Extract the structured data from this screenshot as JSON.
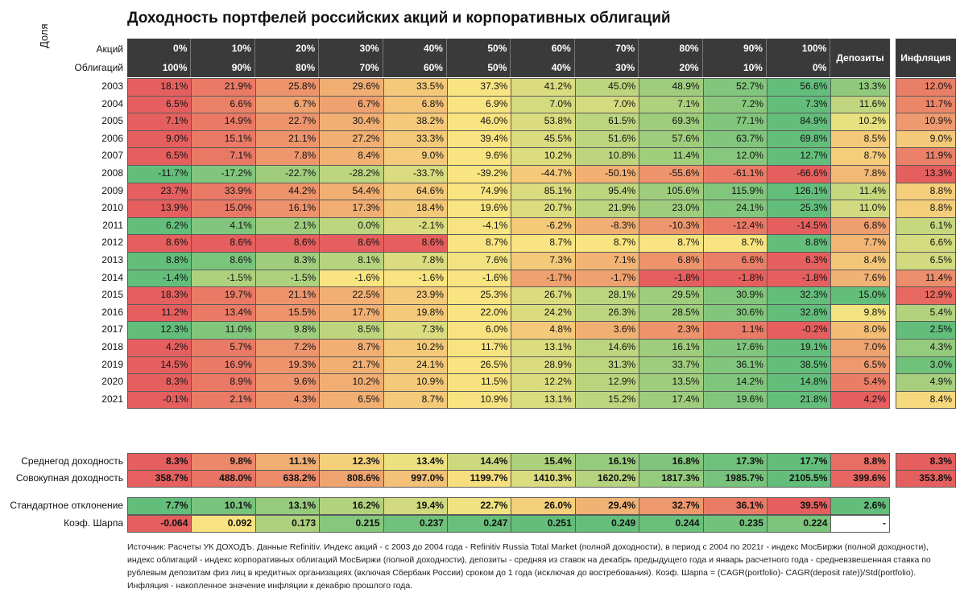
{
  "title": "Доходность портфелей российских акций и корпоративных облигаций",
  "header": {
    "share_label": "Доля",
    "stocks_label": "Акций",
    "bonds_label": "Облигаций",
    "stocks": [
      "0%",
      "10%",
      "20%",
      "30%",
      "40%",
      "50%",
      "60%",
      "70%",
      "80%",
      "90%",
      "100%"
    ],
    "bonds": [
      "100%",
      "90%",
      "80%",
      "70%",
      "60%",
      "50%",
      "40%",
      "30%",
      "20%",
      "10%",
      "0%"
    ],
    "deposits_label": "Депозиты",
    "inflation_label": "Инфляция"
  },
  "chart_data": {
    "type": "table",
    "title": "Доходность портфелей российских акций и корпоративных облигаций",
    "years": [
      "2003",
      "2004",
      "2005",
      "2006",
      "2007",
      "2008",
      "2009",
      "2010",
      "2011",
      "2012",
      "2013",
      "2014",
      "2015",
      "2016",
      "2017",
      "2018",
      "2019",
      "2020",
      "2021"
    ],
    "rows": [
      {
        "portfolio": [
          "18.1%",
          "21.9%",
          "25.8%",
          "29.6%",
          "33.5%",
          "37.3%",
          "41.2%",
          "45.0%",
          "48.9%",
          "52.7%",
          "56.6%"
        ],
        "deposits": "13.3%",
        "inflation": "12.0%"
      },
      {
        "portfolio": [
          "6.5%",
          "6.6%",
          "6.7%",
          "6.7%",
          "6.8%",
          "6.9%",
          "7.0%",
          "7.0%",
          "7.1%",
          "7.2%",
          "7.3%"
        ],
        "deposits": "11.6%",
        "inflation": "11.7%"
      },
      {
        "portfolio": [
          "7.1%",
          "14.9%",
          "22.7%",
          "30.4%",
          "38.2%",
          "46.0%",
          "53.8%",
          "61.5%",
          "69.3%",
          "77.1%",
          "84.9%"
        ],
        "deposits": "10.2%",
        "inflation": "10.9%"
      },
      {
        "portfolio": [
          "9.0%",
          "15.1%",
          "21.1%",
          "27.2%",
          "33.3%",
          "39.4%",
          "45.5%",
          "51.6%",
          "57.6%",
          "63.7%",
          "69.8%"
        ],
        "deposits": "8.5%",
        "inflation": "9.0%"
      },
      {
        "portfolio": [
          "6.5%",
          "7.1%",
          "7.8%",
          "8.4%",
          "9.0%",
          "9.6%",
          "10.2%",
          "10.8%",
          "11.4%",
          "12.0%",
          "12.7%"
        ],
        "deposits": "8.7%",
        "inflation": "11.9%"
      },
      {
        "portfolio": [
          "-11.7%",
          "-17.2%",
          "-22.7%",
          "-28.2%",
          "-33.7%",
          "-39.2%",
          "-44.7%",
          "-50.1%",
          "-55.6%",
          "-61.1%",
          "-66.6%"
        ],
        "deposits": "7.8%",
        "inflation": "13.3%"
      },
      {
        "portfolio": [
          "23.7%",
          "33.9%",
          "44.2%",
          "54.4%",
          "64.6%",
          "74.9%",
          "85.1%",
          "95.4%",
          "105.6%",
          "115.9%",
          "126.1%"
        ],
        "deposits": "11.4%",
        "inflation": "8.8%"
      },
      {
        "portfolio": [
          "13.9%",
          "15.0%",
          "16.1%",
          "17.3%",
          "18.4%",
          "19.6%",
          "20.7%",
          "21.9%",
          "23.0%",
          "24.1%",
          "25.3%"
        ],
        "deposits": "11.0%",
        "inflation": "8.8%"
      },
      {
        "portfolio": [
          "6.2%",
          "4.1%",
          "2.1%",
          "0.0%",
          "-2.1%",
          "-4.1%",
          "-6.2%",
          "-8.3%",
          "-10.3%",
          "-12.4%",
          "-14.5%"
        ],
        "deposits": "6.8%",
        "inflation": "6.1%"
      },
      {
        "portfolio": [
          "8.6%",
          "8.6%",
          "8.6%",
          "8.6%",
          "8.6%",
          "8.7%",
          "8.7%",
          "8.7%",
          "8.7%",
          "8.7%",
          "8.8%"
        ],
        "deposits": "7.7%",
        "inflation": "6.6%"
      },
      {
        "portfolio": [
          "8.8%",
          "8.6%",
          "8.3%",
          "8.1%",
          "7.8%",
          "7.6%",
          "7.3%",
          "7.1%",
          "6.8%",
          "6.6%",
          "6.3%"
        ],
        "deposits": "8.4%",
        "inflation": "6.5%"
      },
      {
        "portfolio": [
          "-1.4%",
          "-1.5%",
          "-1.5%",
          "-1.6%",
          "-1.6%",
          "-1.6%",
          "-1.7%",
          "-1.7%",
          "-1.8%",
          "-1.8%",
          "-1.8%"
        ],
        "deposits": "7.6%",
        "inflation": "11.4%"
      },
      {
        "portfolio": [
          "18.3%",
          "19.7%",
          "21.1%",
          "22.5%",
          "23.9%",
          "25.3%",
          "26.7%",
          "28.1%",
          "29.5%",
          "30.9%",
          "32.3%"
        ],
        "deposits": "15.0%",
        "inflation": "12.9%"
      },
      {
        "portfolio": [
          "11.2%",
          "13.4%",
          "15.5%",
          "17.7%",
          "19.8%",
          "22.0%",
          "24.2%",
          "26.3%",
          "28.5%",
          "30.6%",
          "32.8%"
        ],
        "deposits": "9.8%",
        "inflation": "5.4%"
      },
      {
        "portfolio": [
          "12.3%",
          "11.0%",
          "9.8%",
          "8.5%",
          "7.3%",
          "6.0%",
          "4.8%",
          "3.6%",
          "2.3%",
          "1.1%",
          "-0.2%"
        ],
        "deposits": "8.0%",
        "inflation": "2.5%"
      },
      {
        "portfolio": [
          "4.2%",
          "5.7%",
          "7.2%",
          "8.7%",
          "10.2%",
          "11.7%",
          "13.1%",
          "14.6%",
          "16.1%",
          "17.6%",
          "19.1%"
        ],
        "deposits": "7.0%",
        "inflation": "4.3%"
      },
      {
        "portfolio": [
          "14.5%",
          "16.9%",
          "19.3%",
          "21.7%",
          "24.1%",
          "26.5%",
          "28.9%",
          "31.3%",
          "33.7%",
          "36.1%",
          "38.5%"
        ],
        "deposits": "6.5%",
        "inflation": "3.0%"
      },
      {
        "portfolio": [
          "8.3%",
          "8.9%",
          "9.6%",
          "10.2%",
          "10.9%",
          "11.5%",
          "12.2%",
          "12.9%",
          "13.5%",
          "14.2%",
          "14.8%"
        ],
        "deposits": "5.4%",
        "inflation": "4.9%"
      },
      {
        "portfolio": [
          "-0.1%",
          "2.1%",
          "4.3%",
          "6.5%",
          "8.7%",
          "10.9%",
          "13.1%",
          "15.2%",
          "17.4%",
          "19.6%",
          "21.8%"
        ],
        "deposits": "4.2%",
        "inflation": "8.4%"
      }
    ],
    "summary": [
      {
        "label": "Среднегод доходность",
        "portfolio": [
          "8.3%",
          "9.8%",
          "11.1%",
          "12.3%",
          "13.4%",
          "14.4%",
          "15.4%",
          "16.1%",
          "16.8%",
          "17.3%",
          "17.7%"
        ],
        "deposits": "8.8%",
        "inflation": "8.3%"
      },
      {
        "label": "Совокупная доходность",
        "portfolio": [
          "358.7%",
          "488.0%",
          "638.2%",
          "808.6%",
          "997.0%",
          "1199.7%",
          "1410.3%",
          "1620.2%",
          "1817.3%",
          "1985.7%",
          "2105.5%"
        ],
        "deposits": "399.6%",
        "inflation": "353.8%"
      }
    ],
    "risk": [
      {
        "label": "Стандартное отклонение",
        "portfolio": [
          "7.7%",
          "10.1%",
          "13.1%",
          "16.2%",
          "19.4%",
          "22.7%",
          "26.0%",
          "29.4%",
          "32.7%",
          "36.1%",
          "39.5%"
        ],
        "deposits": "2.6%"
      },
      {
        "label": "Коэф. Шарпа",
        "portfolio": [
          "-0.064",
          "0.092",
          "0.173",
          "0.215",
          "0.237",
          "0.247",
          "0.251",
          "0.249",
          "0.244",
          "0.235",
          "0.224"
        ],
        "deposits": "-"
      }
    ]
  },
  "source_text": "Источник: Расчеты УК ДОХОДЪ. Данные Refinitiv. Индекс акций - с 2003 до 2004 года - Refinitiv Russia Total Market (полной доходности), в период с 2004 по 2021г - индекс МосБиржи (полной доходности), индекс облигаций - индекс корпоративных облигаций МосБиржи (полной доходности), депозиты - средняя из ставок на декабрь предыдущего года и январь расчетного года - средневзвешенная ставка по рублевым депозитам физ лиц в кредитных организациях (включая Сбербанк России) сроком до 1 года (исключая до востребования). Коэф. Шарпа = (CAGR(portfolio)- CAGR(deposit rate))/Std(portfolio). Инфляция - накопленное значение инфляции к декабрю прошлого года."
}
